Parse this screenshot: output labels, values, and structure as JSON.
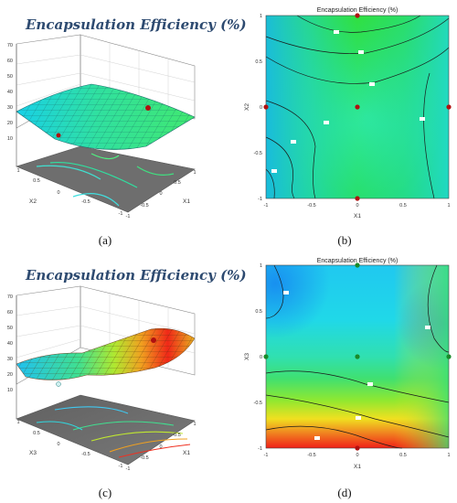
{
  "panel_labels": {
    "a": "(a)",
    "b": "(b)",
    "c": "(c)",
    "d": "(d)"
  },
  "chart_data": [
    {
      "panel": "a",
      "type": "surface",
      "title": "Encapsulation Efficiency (%)",
      "xlabel": "X1",
      "ylabel": "X2",
      "zlim": [
        10,
        70
      ],
      "z_ticks": [
        "10",
        "20",
        "30",
        "40",
        "50",
        "60",
        "70"
      ],
      "x_ticks": [
        "-1",
        "-0.5",
        "0",
        "0.5",
        "1"
      ],
      "y_ticks": [
        "-1",
        "-0.5",
        "0",
        "0.5",
        "1"
      ],
      "surface_colors": [
        "#18d8e8",
        "#30e8a0",
        "#40e870"
      ]
    },
    {
      "panel": "b",
      "type": "contour",
      "title": "Encapsulation Efficiency (%)",
      "xlabel": "X1",
      "ylabel": "X2",
      "xlim": [
        -1,
        1
      ],
      "ylim": [
        -1,
        1
      ],
      "x_ticks": [
        "-1",
        "-0.5",
        "0",
        "0.5",
        "1"
      ],
      "y_ticks": [
        "-1",
        "-0.5",
        "0",
        "0.5",
        "1"
      ],
      "design_points": [
        [
          0,
          1
        ],
        [
          -1,
          0
        ],
        [
          0,
          0
        ],
        [
          1,
          0
        ],
        [
          0,
          -1
        ]
      ]
    },
    {
      "panel": "c",
      "type": "surface",
      "title": "Encapsulation Efficiency (%)",
      "xlabel": "X1",
      "ylabel": "X3",
      "zlim": [
        10,
        70
      ],
      "z_ticks": [
        "10",
        "20",
        "30",
        "40",
        "50",
        "60",
        "70"
      ],
      "x_ticks": [
        "-1",
        "-0.5",
        "0",
        "0.5",
        "1"
      ],
      "y_ticks": [
        "-1",
        "-0.5",
        "0",
        "0.5",
        "1"
      ],
      "surface_colors": [
        "#20c8f0",
        "#40e880",
        "#e8e020",
        "#f03018"
      ]
    },
    {
      "panel": "d",
      "type": "contour",
      "title": "Encapsulation Efficiency (%)",
      "xlabel": "X1",
      "ylabel": "X3",
      "xlim": [
        -1,
        1
      ],
      "ylim": [
        -1,
        1
      ],
      "x_ticks": [
        "-1",
        "-0.5",
        "0",
        "0.5",
        "1"
      ],
      "y_ticks": [
        "-1",
        "-0.5",
        "0",
        "0.5",
        "1"
      ],
      "design_points": [
        [
          0,
          1
        ],
        [
          -1,
          0
        ],
        [
          0,
          0
        ],
        [
          1,
          0
        ],
        [
          0,
          -1
        ]
      ]
    }
  ]
}
